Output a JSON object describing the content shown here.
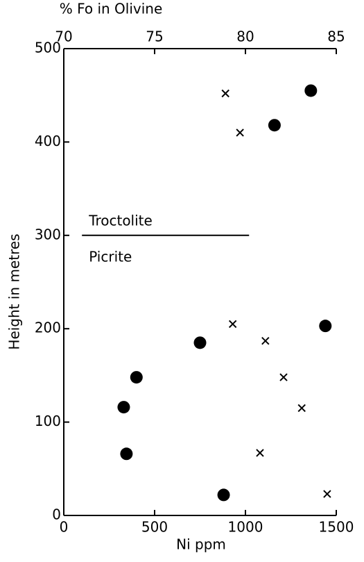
{
  "chart_data": {
    "type": "scatter",
    "xlabel": "Ni ppm",
    "ylabel": "Height in metres",
    "x2label": "% Fo in Olivine",
    "xlim": [
      0,
      1500
    ],
    "xticks": [
      0,
      500,
      1000,
      1500
    ],
    "x2lim": [
      70,
      85
    ],
    "x2ticks": [
      70,
      75,
      80,
      85
    ],
    "ylim": [
      0,
      500
    ],
    "yticks": [
      0,
      100,
      200,
      300,
      400,
      500
    ],
    "series": [
      {
        "name": "dots",
        "marker": "circle",
        "color": "#000000",
        "x": [
          1360,
          1160,
          1440,
          750,
          400,
          330,
          345,
          880
        ],
        "values": [
          455,
          418,
          203,
          185,
          148,
          116,
          66,
          22
        ]
      },
      {
        "name": "crosses",
        "marker": "x",
        "color": "#000000",
        "x": [
          890,
          970,
          930,
          1110,
          1210,
          1310,
          1080,
          1450
        ],
        "values": [
          452,
          410,
          205,
          187,
          148,
          115,
          67,
          23
        ]
      }
    ],
    "boundary": {
      "y": 300,
      "x": [
        100,
        1020
      ],
      "above": "Troctolite",
      "below": "Picrite"
    }
  }
}
